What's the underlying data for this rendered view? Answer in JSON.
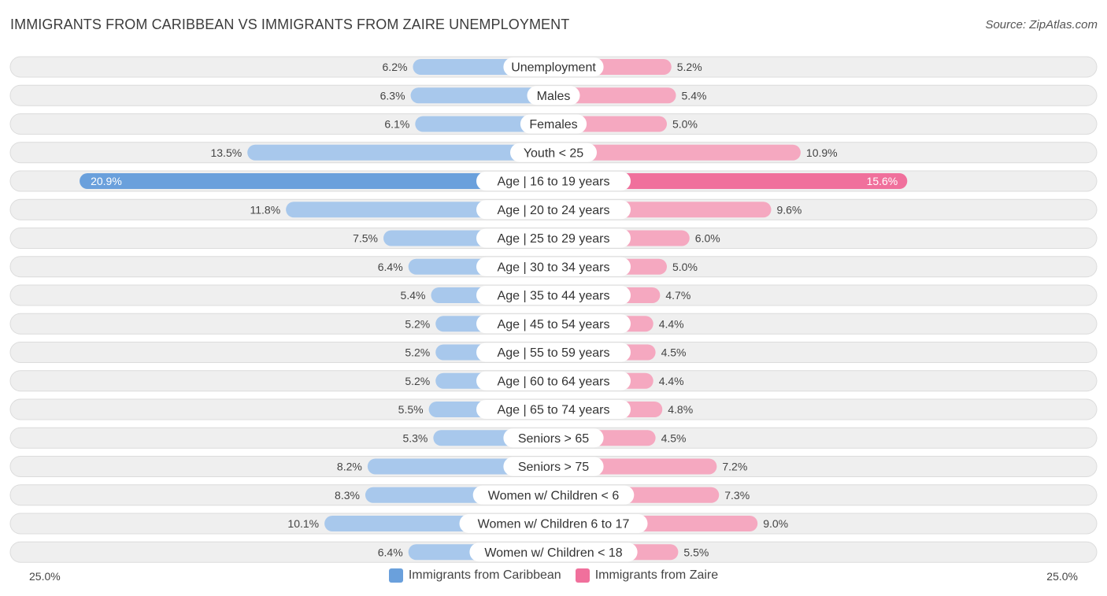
{
  "title": "IMMIGRANTS FROM CARIBBEAN VS IMMIGRANTS FROM ZAIRE UNEMPLOYMENT",
  "source": "Source: ZipAtlas.com",
  "colors": {
    "left_bar": "#a8c8ec",
    "left_bar_strong": "#6aa0dc",
    "right_bar": "#f5a8c0",
    "right_bar_strong": "#f0709c",
    "row_bg": "#efefef",
    "row_border": "#dcdcdc"
  },
  "chart_data": {
    "type": "bar",
    "orientation": "horizontal-diverging",
    "title": "IMMIGRANTS FROM CARIBBEAN VS IMMIGRANTS FROM ZAIRE UNEMPLOYMENT",
    "xlim": [
      -25,
      25
    ],
    "axis_left_label": "25.0%",
    "axis_right_label": "25.0%",
    "categories": [
      "Unemployment",
      "Males",
      "Females",
      "Youth < 25",
      "Age | 16 to 19 years",
      "Age | 20 to 24 years",
      "Age | 25 to 29 years",
      "Age | 30 to 34 years",
      "Age | 35 to 44 years",
      "Age | 45 to 54 years",
      "Age | 55 to 59 years",
      "Age | 60 to 64 years",
      "Age | 65 to 74 years",
      "Seniors > 65",
      "Seniors > 75",
      "Women w/ Children < 6",
      "Women w/ Children 6 to 17",
      "Women w/ Children < 18"
    ],
    "series": [
      {
        "name": "Immigrants from Caribbean",
        "values": [
          6.2,
          6.3,
          6.1,
          13.5,
          20.9,
          11.8,
          7.5,
          6.4,
          5.4,
          5.2,
          5.2,
          5.2,
          5.5,
          5.3,
          8.2,
          8.3,
          10.1,
          6.4
        ],
        "labels": [
          "6.2%",
          "6.3%",
          "6.1%",
          "13.5%",
          "20.9%",
          "11.8%",
          "7.5%",
          "6.4%",
          "5.4%",
          "5.2%",
          "5.2%",
          "5.2%",
          "5.5%",
          "5.3%",
          "8.2%",
          "8.3%",
          "10.1%",
          "6.4%"
        ]
      },
      {
        "name": "Immigrants from Zaire",
        "values": [
          5.2,
          5.4,
          5.0,
          10.9,
          15.6,
          9.6,
          6.0,
          5.0,
          4.7,
          4.4,
          4.5,
          4.4,
          4.8,
          4.5,
          7.2,
          7.3,
          9.0,
          5.5
        ],
        "labels": [
          "5.2%",
          "5.4%",
          "5.0%",
          "10.9%",
          "15.6%",
          "9.6%",
          "6.0%",
          "5.0%",
          "4.7%",
          "4.4%",
          "4.5%",
          "4.4%",
          "4.8%",
          "4.5%",
          "7.2%",
          "7.3%",
          "9.0%",
          "5.5%"
        ]
      }
    ],
    "legend": [
      "Immigrants from Caribbean",
      "Immigrants from Zaire"
    ]
  }
}
